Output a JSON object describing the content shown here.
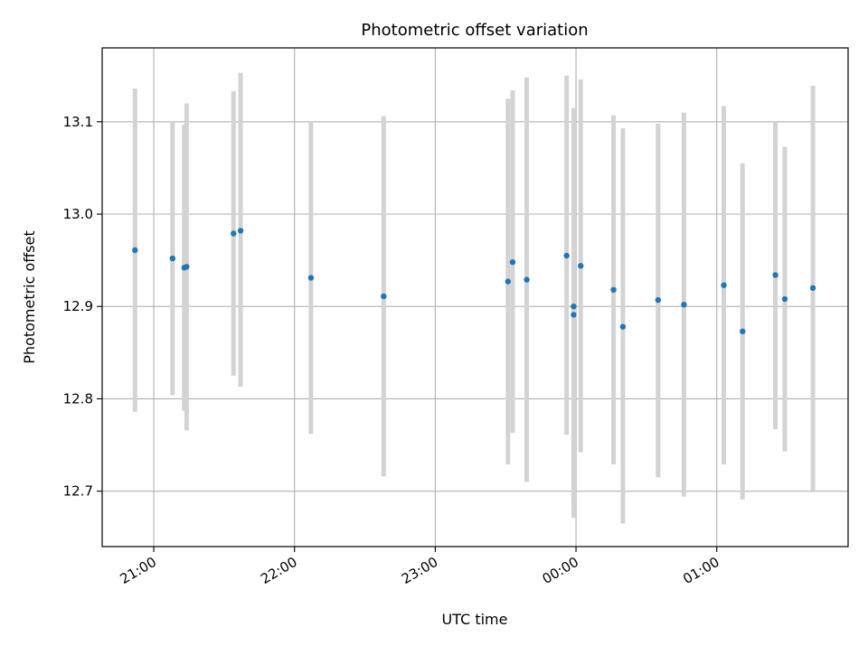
{
  "chart_data": {
    "type": "scatter",
    "title": "Photometric offset variation",
    "xlabel": "UTC time",
    "ylabel": "Photometric offset",
    "xlim": [
      "20:38",
      "01:56"
    ],
    "ylim": [
      12.64,
      13.18
    ],
    "x_tick_labels": [
      "21:00",
      "22:00",
      "23:00",
      "00:00",
      "01:00"
    ],
    "y_tick_values": [
      12.7,
      12.8,
      12.9,
      13.0,
      13.1
    ],
    "y_tick_labels": [
      "12.7",
      "12.8",
      "12.9",
      "13.0",
      "13.1"
    ],
    "grid": true,
    "colors": {
      "points": "#1f77b4",
      "errorbars": "#d3d3d3",
      "grid": "#b0b0b0"
    },
    "points": [
      {
        "x": "20:52",
        "y": 12.961,
        "ylow": 12.786,
        "yhigh": 13.136
      },
      {
        "x": "21:08",
        "y": 12.952,
        "ylow": 12.804,
        "yhigh": 13.1
      },
      {
        "x": "21:13",
        "y": 12.942,
        "ylow": 12.787,
        "yhigh": 13.097
      },
      {
        "x": "21:14",
        "y": 12.943,
        "ylow": 12.766,
        "yhigh": 13.12
      },
      {
        "x": "21:34",
        "y": 12.979,
        "ylow": 12.825,
        "yhigh": 13.133
      },
      {
        "x": "21:37",
        "y": 12.982,
        "ylow": 12.813,
        "yhigh": 13.153
      },
      {
        "x": "22:07",
        "y": 12.931,
        "ylow": 12.762,
        "yhigh": 13.1
      },
      {
        "x": "22:38",
        "y": 12.911,
        "ylow": 12.716,
        "yhigh": 13.106
      },
      {
        "x": "23:31",
        "y": 12.927,
        "ylow": 12.729,
        "yhigh": 13.125
      },
      {
        "x": "23:33",
        "y": 12.948,
        "ylow": 12.763,
        "yhigh": 13.134
      },
      {
        "x": "23:39",
        "y": 12.929,
        "ylow": 12.71,
        "yhigh": 13.148
      },
      {
        "x": "23:56",
        "y": 12.955,
        "ylow": 12.761,
        "yhigh": 13.15
      },
      {
        "x": "23:59",
        "y": 12.9,
        "ylow": 12.685,
        "yhigh": 13.115
      },
      {
        "x": "23:59",
        "y": 12.891,
        "ylow": 12.671,
        "yhigh": 13.111
      },
      {
        "x": "00:02",
        "y": 12.944,
        "ylow": 12.742,
        "yhigh": 13.146
      },
      {
        "x": "00:16",
        "y": 12.918,
        "ylow": 12.729,
        "yhigh": 13.107
      },
      {
        "x": "00:20",
        "y": 12.878,
        "ylow": 12.665,
        "yhigh": 13.093
      },
      {
        "x": "00:35",
        "y": 12.907,
        "ylow": 12.715,
        "yhigh": 13.098
      },
      {
        "x": "00:46",
        "y": 12.902,
        "ylow": 12.694,
        "yhigh": 13.11
      },
      {
        "x": "01:03",
        "y": 12.923,
        "ylow": 12.729,
        "yhigh": 13.117
      },
      {
        "x": "01:11",
        "y": 12.873,
        "ylow": 12.691,
        "yhigh": 13.055
      },
      {
        "x": "01:25",
        "y": 12.934,
        "ylow": 12.767,
        "yhigh": 13.1
      },
      {
        "x": "01:29",
        "y": 12.908,
        "ylow": 12.743,
        "yhigh": 13.073
      },
      {
        "x": "01:41",
        "y": 12.92,
        "ylow": 12.7,
        "yhigh": 13.139
      }
    ]
  }
}
